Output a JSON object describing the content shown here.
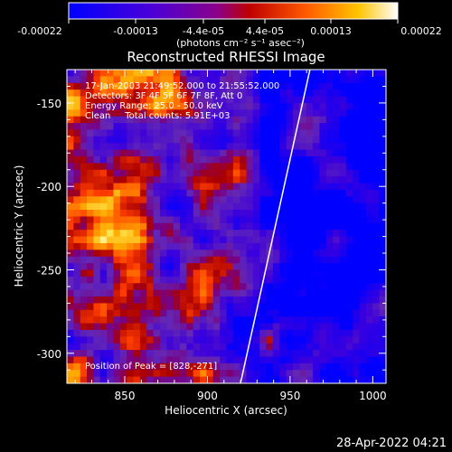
{
  "colorbar": {
    "tick_labels": [
      "-0.00022",
      "-0.00013",
      "-4.4e-05",
      "4.4e-05",
      "0.00013",
      "0.00022"
    ],
    "unit_label": "(photons cm⁻² s⁻¹ asec⁻²)"
  },
  "chart_data": {
    "type": "heatmap",
    "title": "Reconstructed RHESSI Image",
    "xlabel": "Heliocentric X (arcsec)",
    "ylabel": "Heliocentric Y (arcsec)",
    "xlim": [
      815,
      1008
    ],
    "ylim": [
      -318,
      -130
    ],
    "xticks": [
      850,
      900,
      950,
      1000
    ],
    "yticks": [
      -300,
      -250,
      -200,
      -150
    ],
    "value_range": [
      -0.00022,
      0.00022
    ],
    "limb_line": {
      "x": [
        920,
        962
      ],
      "y": [
        -318,
        -130
      ]
    },
    "annotations": [
      "17-Jan-2003 21:49:52.000 to 21:55:52.000",
      "Detectors: 3F 4F 5F 6F 7F 8F, Att 0",
      "Energy Range: 25.0 - 50.0 keV",
      "Clean     Total counts: 5.91E+03"
    ],
    "peak_label": "Position of Peak = [828,-271]"
  },
  "footer": {
    "timestamp": "28-Apr-2022 04:21"
  }
}
